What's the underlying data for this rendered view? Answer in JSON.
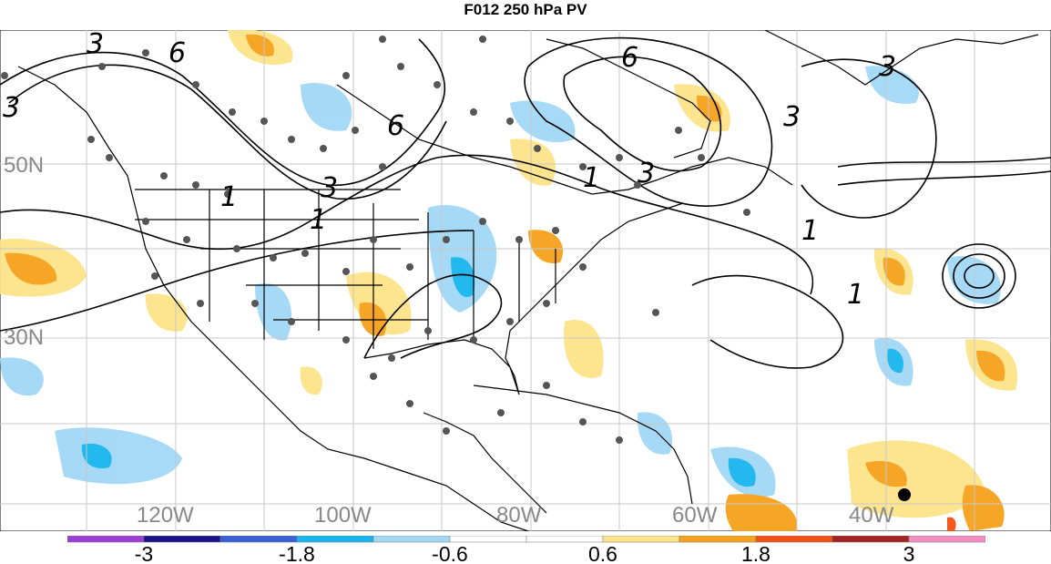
{
  "title": "F012 250 hPa PV",
  "latitude_labels": [
    "50N",
    "30N"
  ],
  "longitude_labels": [
    "120W",
    "100W",
    "80W",
    "60W",
    "40W"
  ],
  "contour_labels": [
    "3",
    "6",
    "1",
    "1",
    "3",
    "6",
    "3",
    "1",
    "6",
    "3",
    "3",
    "1",
    "3",
    "1"
  ],
  "colorbar": {
    "colors": [
      "#9b3fd6",
      "#17148c",
      "#3a60d6",
      "#18b6ee",
      "#a2d8f6",
      "#ffffff",
      "#ffffff",
      "#fde48a",
      "#f6a21c",
      "#f35014",
      "#a52222",
      "#f38fc0"
    ],
    "tick_labels": [
      "-3",
      "-1.8",
      "-0.6",
      "0.6",
      "1.8",
      "3"
    ]
  },
  "colors": {
    "land_outline": "#000000",
    "grid": "#c8c8c8",
    "contour": "#000000",
    "station_dot": "#555555",
    "axis_label": "#888888"
  }
}
